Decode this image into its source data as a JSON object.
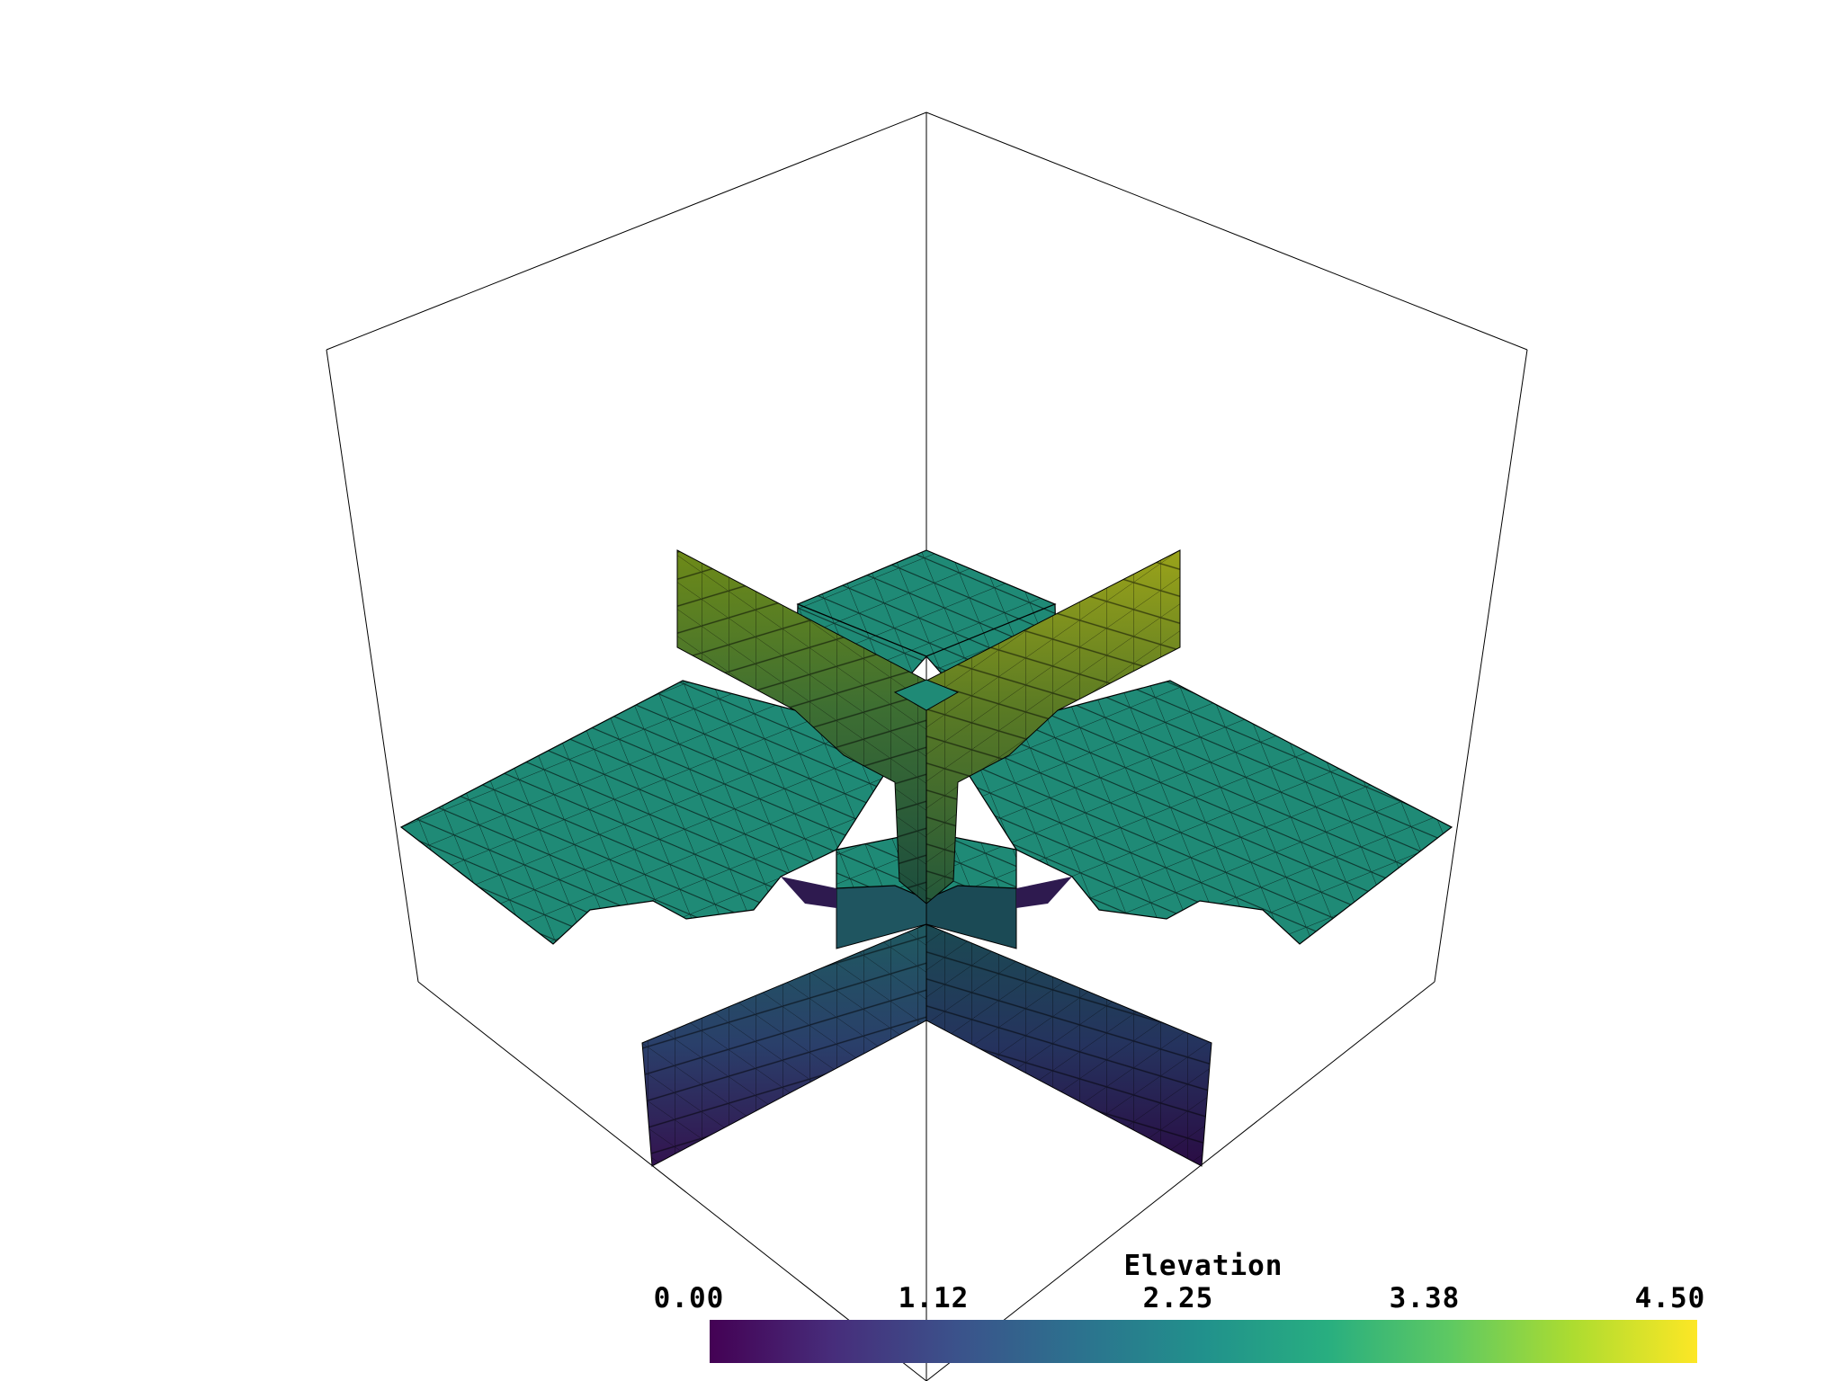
{
  "scene": {
    "mesh_color": "#1f8f78",
    "edge_color": "#000000",
    "bbox_line_color": "#000000",
    "background": "#ffffff"
  },
  "scalar_bar": {
    "title": "Elevation",
    "ticks": [
      "0.00",
      "1.12",
      "2.25",
      "3.38",
      "4.50"
    ],
    "range": [
      0.0,
      4.5
    ],
    "colormap": "viridis",
    "colors": [
      "#440154",
      "#472d7b",
      "#3b528b",
      "#2c728e",
      "#21918c",
      "#28ae80",
      "#5ec962",
      "#addc30",
      "#fde725"
    ]
  }
}
